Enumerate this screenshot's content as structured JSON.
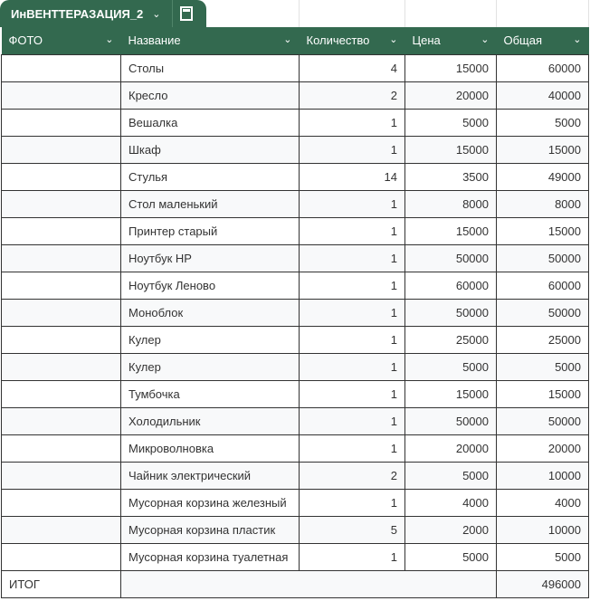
{
  "sheet_tab": {
    "name": "ИнВЕНТТЕРАЗАЦИЯ_2",
    "icon": "calculator-icon"
  },
  "colors": {
    "header": "#33694f"
  },
  "columns": [
    "ФОТО",
    "Название",
    "Количество",
    "Цена",
    "Общая"
  ],
  "rows": [
    [
      "",
      "Столы",
      "4",
      "15000",
      "60000"
    ],
    [
      "",
      "Кресло",
      "2",
      "20000",
      "40000"
    ],
    [
      "",
      "Вешалка",
      "1",
      "5000",
      "5000"
    ],
    [
      "",
      "Шкаф",
      "1",
      "15000",
      "15000"
    ],
    [
      "",
      "Стулья",
      "14",
      "3500",
      "49000"
    ],
    [
      "",
      "Стол маленький",
      "1",
      "8000",
      "8000"
    ],
    [
      "",
      "Принтер старый",
      "1",
      "15000",
      "15000"
    ],
    [
      "",
      "Ноутбук HP",
      "1",
      "50000",
      "50000"
    ],
    [
      "",
      "Ноутбук Леново",
      "1",
      "60000",
      "60000"
    ],
    [
      "",
      "Моноблок",
      "1",
      "50000",
      "50000"
    ],
    [
      "",
      "Кулер",
      "1",
      "25000",
      "25000"
    ],
    [
      "",
      "Кулер",
      "1",
      "5000",
      "5000"
    ],
    [
      "",
      "Тумбочка",
      "1",
      "15000",
      "15000"
    ],
    [
      "",
      "Холодильник",
      "1",
      "50000",
      "50000"
    ],
    [
      "",
      "Микроволновка",
      "1",
      "20000",
      "20000"
    ],
    [
      "",
      "Чайник электрический",
      "2",
      "5000",
      "10000"
    ],
    [
      "",
      "Мусорная корзина железный",
      "1",
      "4000",
      "4000"
    ],
    [
      "",
      "Мусорная корзина пластик",
      "5",
      "2000",
      "10000"
    ],
    [
      "",
      "Мусорная корзина туалетная",
      "1",
      "5000",
      "5000"
    ]
  ],
  "total": {
    "label": "ИТОГ",
    "value": "496000"
  }
}
